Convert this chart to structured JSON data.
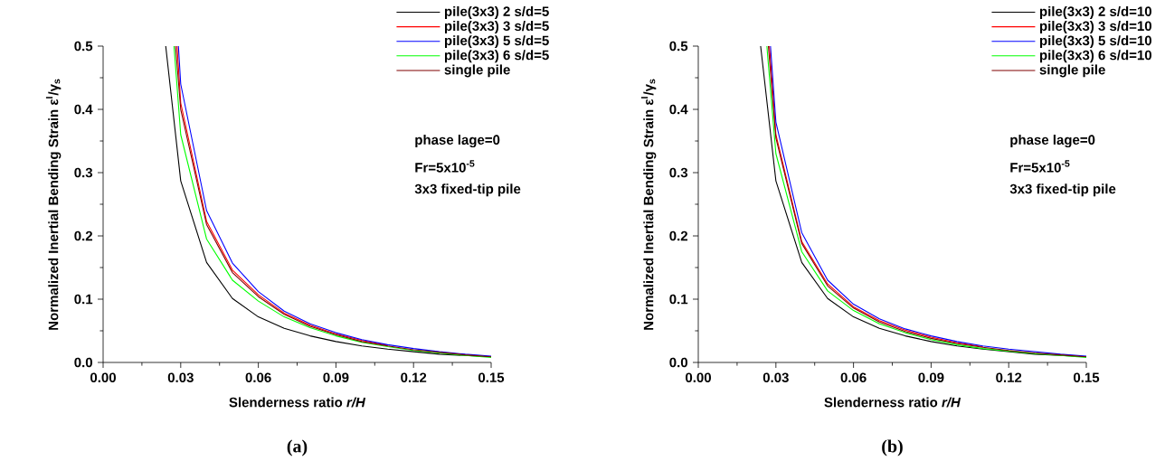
{
  "chart_data": [
    {
      "type": "line",
      "xlabel": "Slenderness ratio *r/H*",
      "ylabel": "Normalized Inertial Bending Strain ε$^{I}$/γ$_{s}$",
      "xlim": [
        0,
        0.15
      ],
      "ylim": [
        0,
        0.5
      ],
      "xticks": [
        {
          "value": 0,
          "label": "0.00"
        },
        0.03,
        0.06,
        0.09,
        0.12,
        0.15
      ],
      "yticks": [
        {
          "value": 0,
          "label": "0.0"
        },
        0.1,
        0.2,
        0.3,
        0.4,
        0.5
      ],
      "legend": "top right",
      "marker": "none",
      "line_style": "solid",
      "annotations": [
        "phase lage=0",
        "Fr=5x10$^{-5}$",
        "3x3 fixed-tip pile",
        "**(a)**"
      ],
      "series": [
        {
          "name": "pile(3x3) 2 s/d=5",
          "color": "#000000",
          "x": [
            0.0242,
            0.03,
            0.04,
            0.05,
            0.06,
            0.07,
            0.08,
            0.09,
            0.1,
            0.11,
            0.12,
            0.13,
            0.14,
            0.15
          ],
          "values": [
            0.5,
            0.287,
            0.158,
            0.101,
            0.072,
            0.054,
            0.042,
            0.033,
            0.026,
            0.021,
            0.017,
            0.013,
            0.011,
            0.009
          ]
        },
        {
          "name": "pile(3x3) 3 s/d=5",
          "color": "#ff0000",
          "x": [
            0.0286,
            0.03,
            0.04,
            0.05,
            0.06,
            0.07,
            0.08,
            0.09,
            0.1,
            0.11
          ],
          "values": [
            0.5,
            0.41,
            0.223,
            0.146,
            0.107,
            0.078,
            0.059,
            0.045,
            0.035,
            0.027
          ]
        },
        {
          "name": "pile(3x3) 5 s/d=5",
          "color": "#0000ff",
          "x": [
            0.0291,
            0.03,
            0.04,
            0.05,
            0.06,
            0.07,
            0.08,
            0.09,
            0.1,
            0.11,
            0.12,
            0.13,
            0.14,
            0.15
          ],
          "values": [
            0.5,
            0.44,
            0.24,
            0.157,
            0.112,
            0.081,
            0.061,
            0.047,
            0.036,
            0.028,
            0.022,
            0.017,
            0.013,
            0.01
          ]
        },
        {
          "name": "pile(3x3) 6 s/d=5",
          "color": "#00ff00",
          "x": [
            0.0274,
            0.03,
            0.04,
            0.05,
            0.06,
            0.07,
            0.08,
            0.09,
            0.1,
            0.11,
            0.12,
            0.13,
            0.14,
            0.15
          ],
          "values": [
            0.5,
            0.36,
            0.195,
            0.13,
            0.097,
            0.072,
            0.055,
            0.042,
            0.032,
            0.025,
            0.019,
            0.015,
            0.011,
            0.008
          ]
        },
        {
          "name": "single pile",
          "color": "#800000",
          "x": [
            0.028,
            0.03,
            0.04,
            0.05,
            0.06,
            0.07,
            0.08,
            0.09,
            0.1,
            0.11,
            0.12,
            0.13,
            0.14,
            0.15
          ],
          "values": [
            0.5,
            0.4,
            0.218,
            0.142,
            0.104,
            0.076,
            0.057,
            0.044,
            0.033,
            0.026,
            0.02,
            0.016,
            0.012,
            0.009
          ]
        }
      ]
    },
    {
      "type": "line",
      "xlabel": "Slenderness ratio *r/H*",
      "ylabel": "Normalized Inertial Bending Strain ε$^{I}$/γ$_{s}$",
      "xlim": [
        0,
        0.15
      ],
      "ylim": [
        0,
        0.5
      ],
      "xticks": [
        {
          "value": 0,
          "label": "0.00"
        },
        0.03,
        0.06,
        0.09,
        0.12,
        0.15
      ],
      "yticks": [
        {
          "value": 0,
          "label": "0.0"
        },
        0.1,
        0.2,
        0.3,
        0.4,
        0.5
      ],
      "legend": "top right",
      "marker": "none",
      "line_style": "solid",
      "annotations": [
        "phase lage=0",
        "Fr=5x10$^{-5}$",
        "3x3 fixed-tip pile",
        "**(b)**"
      ],
      "series": [
        {
          "name": "pile(3x3) 2 s/d=10",
          "color": "#000000",
          "x": [
            0.0241,
            0.03,
            0.04,
            0.05,
            0.06,
            0.07,
            0.08,
            0.09,
            0.1,
            0.11,
            0.12,
            0.13,
            0.14,
            0.15
          ],
          "values": [
            0.5,
            0.287,
            0.158,
            0.101,
            0.072,
            0.054,
            0.042,
            0.033,
            0.026,
            0.021,
            0.017,
            0.013,
            0.011,
            0.009
          ]
        },
        {
          "name": "pile(3x3) 3 s/d=10",
          "color": "#ff0000",
          "x": [
            0.0275,
            0.03,
            0.04,
            0.05,
            0.06,
            0.07,
            0.08,
            0.09,
            0.1,
            0.11
          ],
          "values": [
            0.5,
            0.36,
            0.191,
            0.124,
            0.088,
            0.066,
            0.051,
            0.04,
            0.031,
            0.025
          ]
        },
        {
          "name": "pile(3x3) 5 s/d=10",
          "color": "#0000ff",
          "x": [
            0.0279,
            0.03,
            0.04,
            0.05,
            0.06,
            0.07,
            0.08,
            0.09,
            0.1,
            0.11,
            0.12,
            0.13,
            0.14,
            0.15
          ],
          "values": [
            0.5,
            0.38,
            0.205,
            0.13,
            0.092,
            0.069,
            0.053,
            0.042,
            0.033,
            0.026,
            0.021,
            0.017,
            0.013,
            0.01
          ]
        },
        {
          "name": "pile(3x3) 6 s/d=10",
          "color": "#00ff00",
          "x": [
            0.0265,
            0.03,
            0.04,
            0.05,
            0.06,
            0.07,
            0.08,
            0.09,
            0.1,
            0.11,
            0.12,
            0.13,
            0.14,
            0.15
          ],
          "values": [
            0.5,
            0.33,
            0.175,
            0.113,
            0.082,
            0.061,
            0.047,
            0.036,
            0.028,
            0.022,
            0.018,
            0.014,
            0.011,
            0.008
          ]
        },
        {
          "name": "single pile",
          "color": "#800000",
          "x": [
            0.0271,
            0.03,
            0.04,
            0.05,
            0.06,
            0.07,
            0.08,
            0.09,
            0.1,
            0.11,
            0.12,
            0.13,
            0.14,
            0.15
          ],
          "values": [
            0.5,
            0.355,
            0.188,
            0.121,
            0.086,
            0.064,
            0.049,
            0.038,
            0.03,
            0.024,
            0.019,
            0.015,
            0.012,
            0.009
          ]
        }
      ]
    }
  ]
}
